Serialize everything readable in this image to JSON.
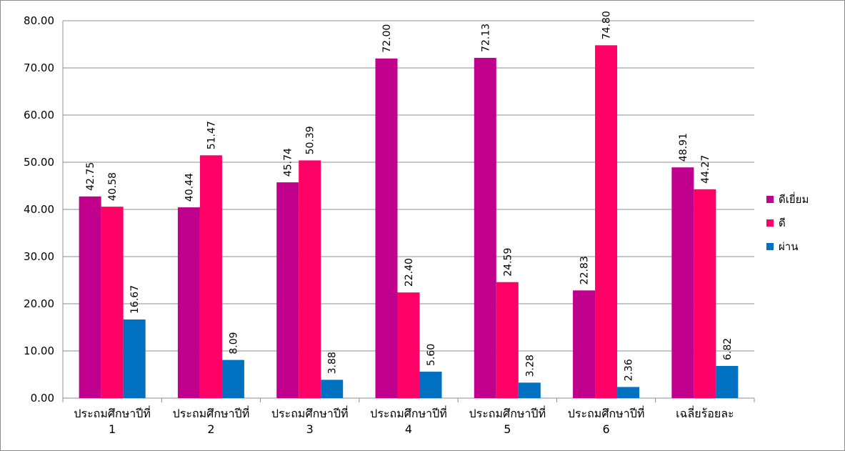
{
  "chart_data": {
    "type": "bar",
    "title": "",
    "xlabel": "",
    "ylabel": "",
    "ylim": [
      0,
      80
    ],
    "y_ticks": [
      "0.00",
      "10.00",
      "20.00",
      "30.00",
      "40.00",
      "50.00",
      "60.00",
      "70.00",
      "80.00"
    ],
    "grid": true,
    "legend_position": "right",
    "categories": [
      [
        "ประถมศึกษาปีที่",
        "1"
      ],
      [
        "ประถมศึกษาปีที่",
        "2"
      ],
      [
        "ประถมศึกษาปีที่",
        "3"
      ],
      [
        "ประถมศึกษาปีที่",
        "4"
      ],
      [
        "ประถมศึกษาปีที่",
        "5"
      ],
      [
        "ประถมศึกษาปีที่",
        "6"
      ],
      [
        "เฉลี่ยร้อยละ",
        ""
      ]
    ],
    "series": [
      {
        "name": "ดีเยี่ยม",
        "color": "#C0008C",
        "values": [
          42.75,
          40.44,
          45.74,
          72.0,
          72.13,
          22.83,
          48.91
        ]
      },
      {
        "name": "ดี",
        "color": "#FF0066",
        "values": [
          40.58,
          51.47,
          50.39,
          22.4,
          24.59,
          74.8,
          44.27
        ]
      },
      {
        "name": "ผ่าน",
        "color": "#0070C0",
        "values": [
          16.67,
          8.09,
          3.88,
          5.6,
          3.28,
          2.36,
          6.82
        ]
      }
    ]
  }
}
